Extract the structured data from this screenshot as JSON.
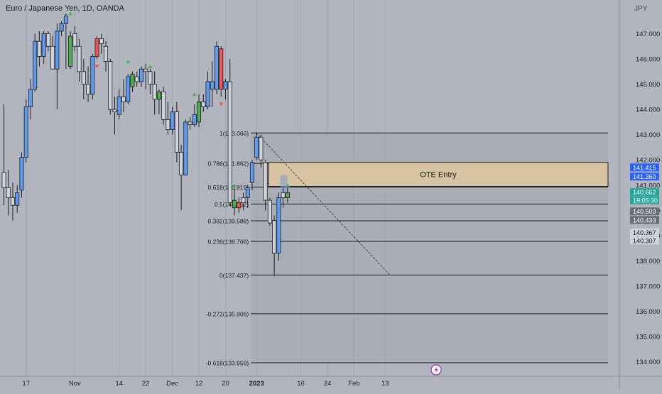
{
  "chart_data": {
    "type": "candlestick",
    "title": "Euro / Japanese Yen, 1D, OANDA",
    "currency": "JPY",
    "y_range": [
      133.6,
      148.2
    ],
    "y_ticks": [
      134.0,
      135.0,
      136.0,
      137.0,
      138.0,
      139.0,
      140.0,
      141.0,
      142.0,
      143.0,
      144.0,
      145.0,
      146.0,
      147.0
    ],
    "x_ticks": [
      {
        "label": "17",
        "bar": 5
      },
      {
        "label": "Nov",
        "bar": 16
      },
      {
        "label": "14",
        "bar": 26
      },
      {
        "label": "22",
        "bar": 32
      },
      {
        "label": "Dec",
        "bar": 38
      },
      {
        "label": "12",
        "bar": 44
      },
      {
        "label": "20",
        "bar": 50
      },
      {
        "label": "2023",
        "bar": 57,
        "bold": true
      },
      {
        "label": "16",
        "bar": 67
      },
      {
        "label": "24",
        "bar": 73
      },
      {
        "label": "Feb",
        "bar": 79
      },
      {
        "label": "13",
        "bar": 86
      }
    ],
    "candles": [
      {
        "o": 141.5,
        "h": 144.2,
        "l": 140.2,
        "c": 140.9,
        "color": "white"
      },
      {
        "o": 140.9,
        "h": 141.6,
        "l": 139.8,
        "c": 140.5,
        "color": "white"
      },
      {
        "o": 140.5,
        "h": 141.1,
        "l": 139.6,
        "c": 140.2,
        "color": "white"
      },
      {
        "o": 140.2,
        "h": 141.0,
        "l": 139.9,
        "c": 140.7,
        "color": "blue"
      },
      {
        "o": 140.8,
        "h": 142.3,
        "l": 140.5,
        "c": 142.1,
        "color": "blue"
      },
      {
        "o": 142.1,
        "h": 144.4,
        "l": 141.9,
        "c": 144.1,
        "color": "blue"
      },
      {
        "o": 144.1,
        "h": 145.2,
        "l": 143.6,
        "c": 144.8,
        "color": "blue"
      },
      {
        "o": 144.8,
        "h": 147.0,
        "l": 144.7,
        "c": 146.7,
        "color": "blue"
      },
      {
        "o": 146.7,
        "h": 147.1,
        "l": 145.7,
        "c": 146.1,
        "color": "white"
      },
      {
        "o": 146.1,
        "h": 147.1,
        "l": 145.8,
        "c": 147.0,
        "color": "blue"
      },
      {
        "o": 147.0,
        "h": 147.1,
        "l": 146.3,
        "c": 146.5,
        "color": "white"
      },
      {
        "o": 146.5,
        "h": 146.9,
        "l": 145.6,
        "c": 145.6,
        "color": "white"
      },
      {
        "o": 145.6,
        "h": 147.4,
        "l": 144.0,
        "c": 147.1,
        "color": "blue"
      },
      {
        "o": 147.1,
        "h": 147.5,
        "l": 146.9,
        "c": 147.4,
        "color": "blue"
      },
      {
        "o": 147.4,
        "h": 147.8,
        "l": 145.6,
        "c": 147.7,
        "color": "blue"
      },
      {
        "o": 145.7,
        "h": 147.1,
        "l": 145.6,
        "c": 146.9,
        "color": "green"
      },
      {
        "o": 147.0,
        "h": 147.3,
        "l": 146.3,
        "c": 146.5,
        "color": "white"
      },
      {
        "o": 146.5,
        "h": 146.8,
        "l": 145.1,
        "c": 145.5,
        "color": "white"
      },
      {
        "o": 145.5,
        "h": 146.0,
        "l": 144.4,
        "c": 145.0,
        "color": "white"
      },
      {
        "o": 145.0,
        "h": 145.7,
        "l": 144.3,
        "c": 144.6,
        "color": "white"
      },
      {
        "o": 144.6,
        "h": 146.2,
        "l": 144.4,
        "c": 146.1,
        "color": "blue"
      },
      {
        "o": 146.1,
        "h": 146.9,
        "l": 146.0,
        "c": 146.8,
        "color": "red"
      },
      {
        "o": 146.6,
        "h": 147.0,
        "l": 146.2,
        "c": 146.8,
        "color": "white"
      },
      {
        "o": 146.5,
        "h": 146.7,
        "l": 145.5,
        "c": 145.9,
        "color": "white"
      },
      {
        "o": 145.9,
        "h": 146.0,
        "l": 143.8,
        "c": 144.0,
        "color": "white"
      },
      {
        "o": 144.0,
        "h": 144.5,
        "l": 143.0,
        "c": 143.9,
        "color": "white"
      },
      {
        "o": 143.8,
        "h": 144.8,
        "l": 143.6,
        "c": 144.5,
        "color": "blue"
      },
      {
        "o": 144.5,
        "h": 145.2,
        "l": 143.9,
        "c": 144.3,
        "color": "white"
      },
      {
        "o": 144.3,
        "h": 145.4,
        "l": 144.2,
        "c": 145.3,
        "color": "blue"
      },
      {
        "o": 144.9,
        "h": 145.5,
        "l": 144.7,
        "c": 145.4,
        "color": "green"
      },
      {
        "o": 145.3,
        "h": 145.5,
        "l": 144.9,
        "c": 145.1,
        "color": "white"
      },
      {
        "o": 145.1,
        "h": 145.7,
        "l": 144.9,
        "c": 145.6,
        "color": "blue"
      },
      {
        "o": 145.6,
        "h": 145.8,
        "l": 144.8,
        "c": 145.5,
        "color": "white"
      },
      {
        "o": 145.5,
        "h": 145.6,
        "l": 144.6,
        "c": 145.0,
        "color": "white"
      },
      {
        "o": 145.0,
        "h": 145.5,
        "l": 143.8,
        "c": 144.4,
        "color": "white"
      },
      {
        "o": 144.4,
        "h": 144.8,
        "l": 143.8,
        "c": 144.7,
        "color": "green"
      },
      {
        "o": 144.7,
        "h": 144.9,
        "l": 143.4,
        "c": 143.6,
        "color": "white"
      },
      {
        "o": 143.6,
        "h": 144.3,
        "l": 143.0,
        "c": 143.2,
        "color": "white"
      },
      {
        "o": 143.2,
        "h": 144.1,
        "l": 143.0,
        "c": 143.9,
        "color": "blue"
      },
      {
        "o": 143.9,
        "h": 144.3,
        "l": 141.9,
        "c": 142.3,
        "color": "white"
      },
      {
        "o": 142.3,
        "h": 142.6,
        "l": 140.0,
        "c": 141.4,
        "color": "white"
      },
      {
        "o": 141.4,
        "h": 143.6,
        "l": 141.4,
        "c": 143.5,
        "color": "blue"
      },
      {
        "o": 143.5,
        "h": 143.7,
        "l": 143.2,
        "c": 143.4,
        "color": "white"
      },
      {
        "o": 143.4,
        "h": 144.2,
        "l": 143.3,
        "c": 143.8,
        "color": "blue"
      },
      {
        "o": 143.5,
        "h": 144.6,
        "l": 143.3,
        "c": 144.3,
        "color": "green"
      },
      {
        "o": 144.3,
        "h": 144.6,
        "l": 143.9,
        "c": 144.1,
        "color": "white"
      },
      {
        "o": 144.1,
        "h": 145.5,
        "l": 144.0,
        "c": 145.1,
        "color": "blue"
      },
      {
        "o": 145.1,
        "h": 145.9,
        "l": 144.1,
        "c": 144.8,
        "color": "blue"
      },
      {
        "o": 144.8,
        "h": 146.7,
        "l": 144.6,
        "c": 146.5,
        "color": "blue"
      },
      {
        "o": 146.4,
        "h": 146.5,
        "l": 144.5,
        "c": 144.8,
        "color": "red"
      },
      {
        "o": 144.8,
        "h": 145.2,
        "l": 144.4,
        "c": 145.1,
        "color": "blue"
      },
      {
        "o": 145.1,
        "h": 146.0,
        "l": 140.2,
        "c": 140.3,
        "color": "white"
      },
      {
        "o": 140.4,
        "h": 140.9,
        "l": 139.8,
        "c": 140.1,
        "color": "green"
      },
      {
        "o": 140.1,
        "h": 140.5,
        "l": 139.9,
        "c": 140.3,
        "color": "red"
      },
      {
        "o": 140.3,
        "h": 140.7,
        "l": 140.0,
        "c": 140.5,
        "color": "white"
      },
      {
        "o": 140.5,
        "h": 141.0,
        "l": 140.1,
        "c": 140.9,
        "color": "blue"
      },
      {
        "o": 141.1,
        "h": 142.0,
        "l": 140.8,
        "c": 141.9,
        "color": "blue"
      },
      {
        "o": 142.1,
        "h": 143.1,
        "l": 142.0,
        "c": 142.9,
        "color": "blue"
      },
      {
        "o": 142.9,
        "h": 143.0,
        "l": 141.7,
        "c": 142.0,
        "color": "white"
      },
      {
        "o": 141.9,
        "h": 142.0,
        "l": 140.0,
        "c": 140.4,
        "color": "white"
      },
      {
        "o": 140.4,
        "h": 140.5,
        "l": 139.4,
        "c": 139.5,
        "color": "white"
      },
      {
        "o": 139.6,
        "h": 139.8,
        "l": 137.4,
        "c": 138.3,
        "color": "white"
      },
      {
        "o": 138.3,
        "h": 140.7,
        "l": 138.0,
        "c": 140.5,
        "color": "blue"
      },
      {
        "o": 140.5,
        "h": 140.9,
        "l": 140.1,
        "c": 140.7,
        "color": "white"
      },
      {
        "o": 140.5,
        "h": 140.9,
        "l": 140.3,
        "c": 140.7,
        "color": "green"
      }
    ],
    "markers": [
      {
        "bar": 15,
        "price": 147.8,
        "dir": "up"
      },
      {
        "bar": 21,
        "price": 145.7,
        "dir": "down"
      },
      {
        "bar": 28,
        "price": 145.9,
        "dir": "up"
      },
      {
        "bar": 33,
        "price": 145.7,
        "dir": "up"
      },
      {
        "bar": 43,
        "price": 144.6,
        "dir": "up"
      },
      {
        "bar": 49,
        "price": 144.2,
        "dir": "down"
      },
      {
        "bar": 52,
        "price": 141.0,
        "dir": "up"
      },
      {
        "bar": 64,
        "price": 141.0,
        "dir": "up"
      }
    ],
    "fib_levels": [
      {
        "ratio": "1",
        "label": "1(143.066)",
        "price": 143.066
      },
      {
        "ratio": "0.786",
        "label": "0.786(141.862)",
        "price": 141.862
      },
      {
        "ratio": "0.618",
        "label": "0.618(140.919)",
        "price": 140.919
      },
      {
        "ratio": "0.5",
        "label": "0.5(140.252)",
        "price": 140.252
      },
      {
        "ratio": "0.382",
        "label": "0.382(139.588)",
        "price": 139.588
      },
      {
        "ratio": "0.236",
        "label": "0.236(138.766)",
        "price": 138.766
      },
      {
        "ratio": "0",
        "label": "0(137.437)",
        "price": 137.437
      },
      {
        "ratio": "-0.272",
        "label": "-0.272(135.906)",
        "price": 135.906
      },
      {
        "ratio": "-0.618",
        "label": "-0.618(133.959)",
        "price": 133.959
      }
    ],
    "fib_start_bar": 57,
    "ote_zone": {
      "label": "OTE Entry",
      "top": 141.9,
      "bottom": 140.95,
      "start_bar": 60
    },
    "trendline": {
      "from": {
        "bar": 57,
        "price": 143.06
      },
      "to": {
        "bar": 87,
        "price": 137.45
      }
    },
    "price_tags": [
      {
        "value": "141.415",
        "price": 141.7,
        "color": "#2962ff",
        "text_color": "#ffffff"
      },
      {
        "value": "141.360",
        "price": 141.34,
        "color": "#2962ff",
        "text_color": "#ffffff"
      },
      {
        "value": "140.662",
        "price": 140.72,
        "color": "#26a69a",
        "text_color": "#ffffff"
      },
      {
        "value": "19:05:30",
        "price": 140.4,
        "color": "#26a69a",
        "text_color": "#ffffff"
      },
      {
        "value": "140.503",
        "price": 139.96,
        "color": "#6a6d78",
        "text_color": "#ffffff"
      },
      {
        "value": "140.433",
        "price": 139.62,
        "color": "#6a6d78",
        "text_color": "#ffffff"
      },
      {
        "value": "140.367",
        "price": 139.12,
        "color": "#d1d4dc",
        "text_color": "#131722"
      },
      {
        "value": "140.307",
        "price": 138.8,
        "color": "#d1d4dc",
        "text_color": "#131722"
      }
    ],
    "colors": {
      "background": "#b2b5be",
      "up_blue": "#5b9cf2",
      "signal_green": "#4caf50",
      "signal_red": "#ef5350",
      "neutral": "#d1d4dc",
      "ote_fill": "#d7c3a2",
      "marker_up": "#4caf50",
      "marker_down": "#ef5350"
    },
    "icons": {
      "flash": "lightning-icon"
    }
  }
}
